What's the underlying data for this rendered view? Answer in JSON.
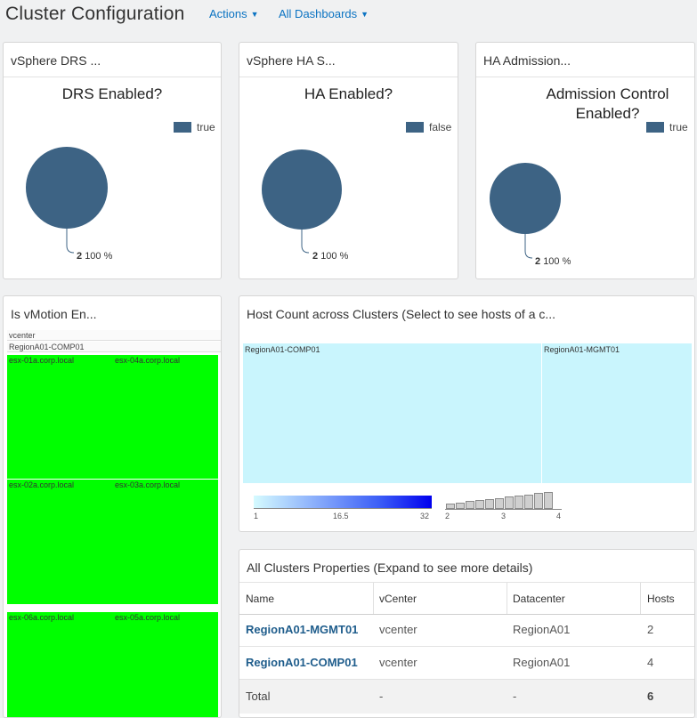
{
  "header": {
    "title": "Cluster Configuration",
    "actions_label": "Actions",
    "dashboards_label": "All Dashboards"
  },
  "colors": {
    "accent": "#0b73c2",
    "pie": "#3d6384",
    "host_green": "#00ff00",
    "treemap_cyan": "#c9f5fd",
    "link": "#1f5d8c"
  },
  "drs": {
    "card_title": "vSphere DRS ...",
    "chart_title": "DRS Enabled?",
    "legend": "true",
    "count": "2",
    "percent": "100 %"
  },
  "ha": {
    "card_title": "vSphere HA S...",
    "chart_title": "HA Enabled?",
    "legend": "false",
    "count": "2",
    "percent": "100 %"
  },
  "admission": {
    "card_title": "HA Admission...",
    "chart_title": "Admission Control Enabled?",
    "legend": "true",
    "count": "2",
    "percent": "100 %"
  },
  "vmotion": {
    "card_title": "Is vMotion En...",
    "path_root": "vcenter",
    "path_cluster": "RegionA01-COMP01",
    "hosts": [
      "esx-01a.corp.local",
      "esx-04a.corp.local",
      "esx-02a.corp.local",
      "esx-03a.corp.local",
      "esx-06a.corp.local",
      "esx-05a.corp.local"
    ]
  },
  "host_count": {
    "card_title": "Host Count across Clusters (Select to see hosts of a c...",
    "clusters": [
      {
        "name": "RegionA01-COMP01",
        "hosts": 4
      },
      {
        "name": "RegionA01-MGMT01",
        "hosts": 2
      }
    ],
    "color_scale_labels": [
      "1",
      "16.5",
      "32"
    ],
    "size_scale_labels": [
      "2",
      "3",
      "4"
    ]
  },
  "chart_data": [
    {
      "type": "pie",
      "title": "DRS Enabled?",
      "labels": [
        "true"
      ],
      "values": [
        2
      ],
      "percent": [
        100
      ]
    },
    {
      "type": "pie",
      "title": "HA Enabled?",
      "labels": [
        "false"
      ],
      "values": [
        2
      ],
      "percent": [
        100
      ]
    },
    {
      "type": "pie",
      "title": "Admission Control Enabled?",
      "labels": [
        "true"
      ],
      "values": [
        2
      ],
      "percent": [
        100
      ]
    }
  ],
  "table": {
    "card_title": "All Clusters Properties (Expand to see more details)",
    "columns": [
      "Name",
      "vCenter",
      "Datacenter",
      "Hosts"
    ],
    "rows": [
      {
        "name": "RegionA01-MGMT01",
        "vcenter": "vcenter",
        "datacenter": "RegionA01",
        "hosts": "2"
      },
      {
        "name": "RegionA01-COMP01",
        "vcenter": "vcenter",
        "datacenter": "RegionA01",
        "hosts": "4"
      }
    ],
    "total": {
      "label": "Total",
      "vcenter": "-",
      "datacenter": "-",
      "hosts": "6"
    }
  }
}
